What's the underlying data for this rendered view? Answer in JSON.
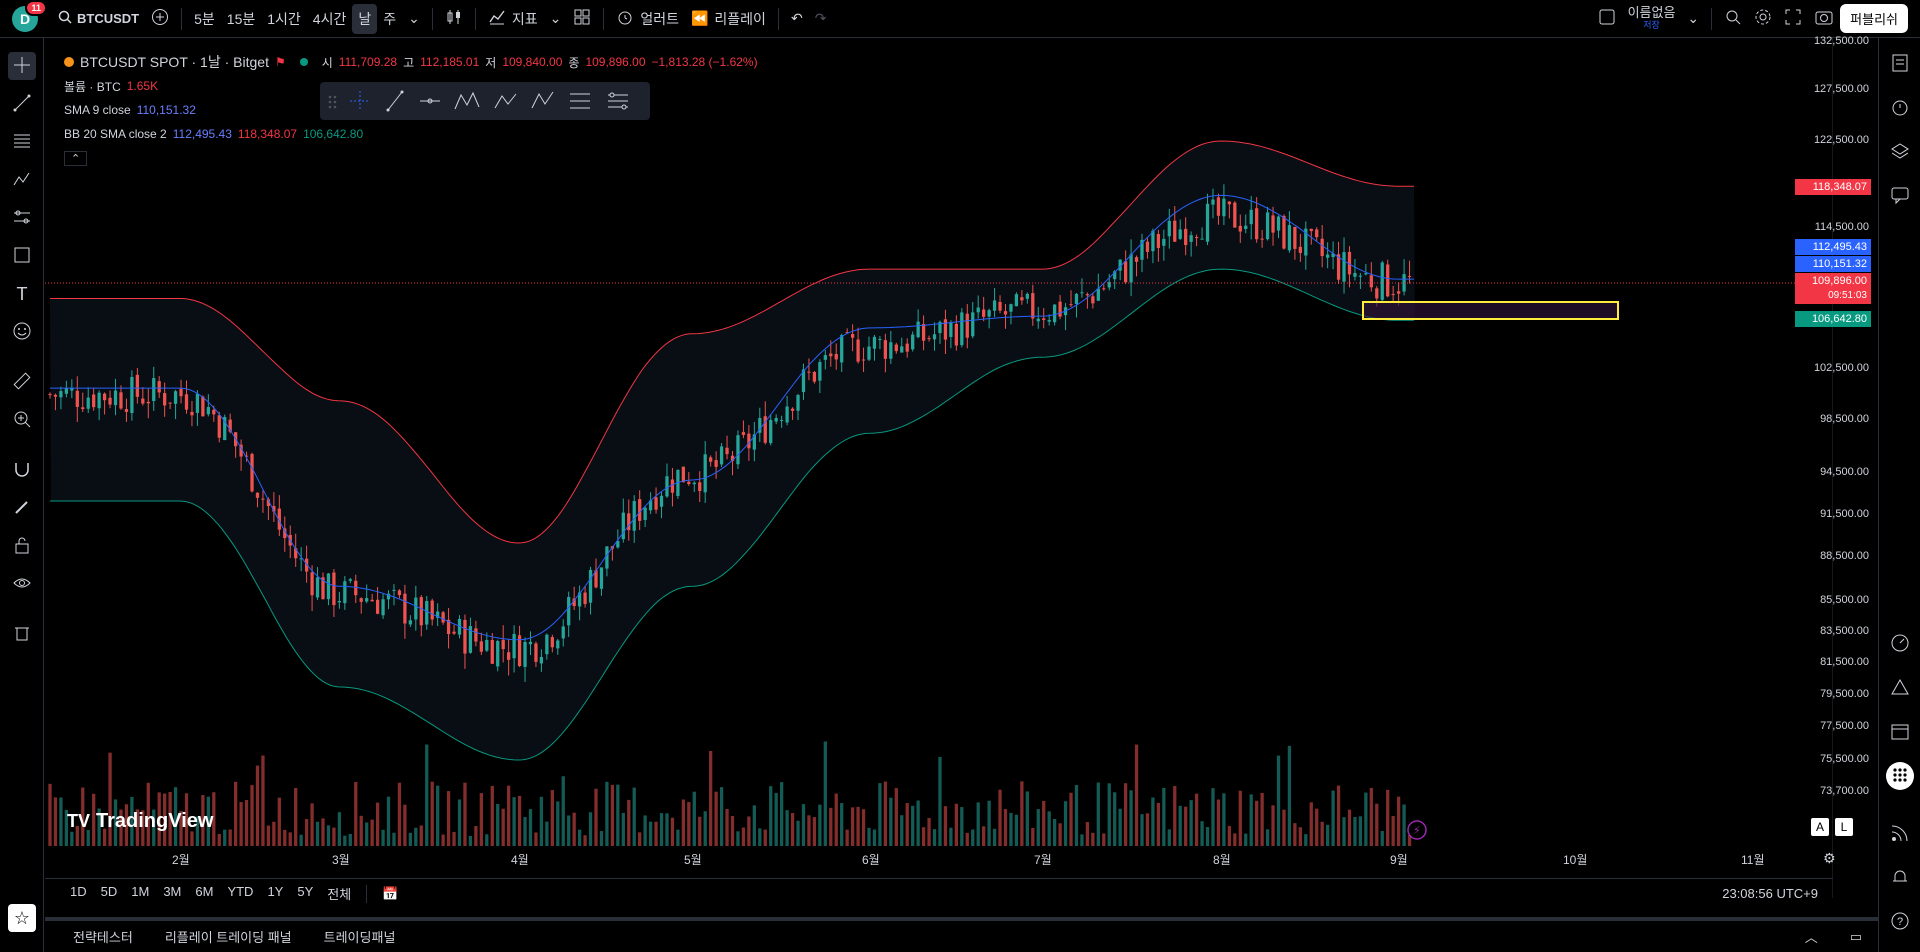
{
  "header": {
    "avatar_letter": "D",
    "notifications": "11",
    "symbol": "BTCUSDT",
    "intervals": [
      "5분",
      "15분",
      "1시간",
      "4시간",
      "날",
      "주"
    ],
    "indicators_label": "지표",
    "alert_label": "얼러트",
    "replay_label": "리플레이",
    "layout_name": "이름없음",
    "layout_status": "저장",
    "publish_label": "퍼블리쉬"
  },
  "legend": {
    "title": "BTCUSDT SPOT · 1날 · Bitget",
    "o_label": "시",
    "o": "111,709.28",
    "h_label": "고",
    "h": "112,185.01",
    "l_label": "저",
    "l": "109,840.00",
    "c_label": "종",
    "c": "109,896.00",
    "change": "−1,813.28 (−1.62%)",
    "volume_label": "볼륨 · BTC",
    "volume": "1.65K",
    "sma_label": "SMA 9 close",
    "sma": "110,151.32",
    "bb_label": "BB 20 SMA close 2",
    "bb_basis": "112,495.43",
    "bb_upper": "118,348.07",
    "bb_lower": "106,642.80"
  },
  "price_scale": [
    "132,500.00",
    "127,500.00",
    "122,500.00",
    "114,500.00",
    "102,500.00",
    "98,500.00",
    "94,500.00",
    "91,500.00",
    "88,500.00",
    "85,500.00",
    "83,500.00",
    "81,500.00",
    "79,500.00",
    "77,500.00",
    "75,500.00",
    "73,700.00"
  ],
  "price_tags": {
    "upper": "118,348.07",
    "basis": "112,495.43",
    "sma": "110,151.32",
    "last": "109,896.00",
    "countdown": "09:51:03",
    "lower": "106,642.80"
  },
  "time_scale": [
    "2월",
    "3월",
    "4월",
    "5월",
    "6월",
    "7월",
    "8월",
    "9월",
    "10월",
    "11월"
  ],
  "ranges": [
    "1D",
    "5D",
    "1M",
    "3M",
    "6M",
    "YTD",
    "1Y",
    "5Y",
    "전체"
  ],
  "clock": "23:08:56 UTC+9",
  "bottom_tabs": [
    "전략테스터",
    "리플레이 트레이딩 패널",
    "트레이딩패널"
  ],
  "logo_text": "TradingView",
  "scale_buttons": [
    "A",
    "L"
  ],
  "colors": {
    "up": "#26a69a",
    "down": "#ef5350",
    "bb_upper": "#f23645",
    "bb_lower": "#089981",
    "sma": "#2962ff"
  },
  "chart_data": {
    "type": "candlestick",
    "title": "BTCUSDT SPOT · 1날 · Bitget",
    "x": [
      "2월",
      "3월",
      "4월",
      "5월",
      "6월",
      "7월",
      "8월",
      "9월"
    ],
    "close": [
      100500,
      86000,
      82500,
      94500,
      104500,
      107500,
      115500,
      109896
    ],
    "bb_upper": [
      108500,
      100000,
      89500,
      105500,
      111000,
      111000,
      122500,
      118348
    ],
    "bb_lower": [
      92500,
      80000,
      75500,
      86500,
      97500,
      103500,
      111000,
      106643
    ],
    "sma_9": [
      101000,
      86500,
      83000,
      94000,
      106000,
      107000,
      117500,
      110151
    ],
    "ylim": [
      73700,
      132500
    ]
  }
}
